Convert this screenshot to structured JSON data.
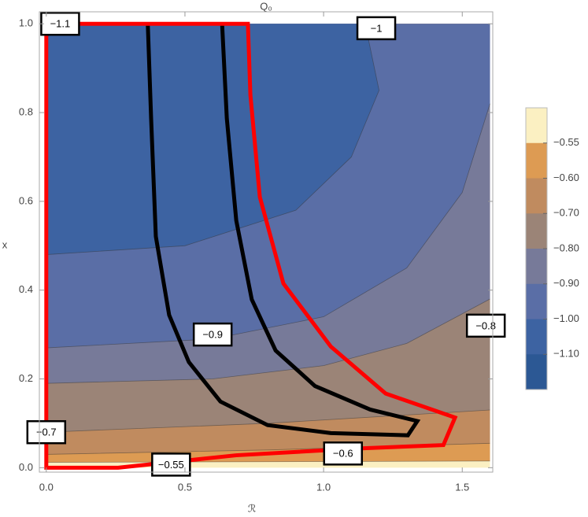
{
  "chart_data": {
    "type": "contour",
    "title": "Q₀",
    "x_label": "ℛ",
    "y_label": "x",
    "xlim": [
      -0.025,
      1.61
    ],
    "ylim": [
      -0.01,
      1.027
    ],
    "xticks": [
      {
        "value": 0,
        "label": "0.0"
      },
      0.5,
      {
        "value": 1,
        "label": "1.0"
      },
      1.5
    ],
    "yticks": [
      {
        "value": 0,
        "label": "0.0"
      },
      0.2,
      0.4,
      0.6,
      0.8,
      {
        "value": 1,
        "label": "1.0"
      }
    ],
    "domain": {
      "x": [
        0,
        1.6
      ],
      "y": [
        0,
        1
      ]
    },
    "colors": [
      "#fbf0c2",
      "#dd9b53",
      "#c08b5f",
      "#9b8477",
      "#777a99",
      "#5a6ea6",
      "#3d63a2",
      "#2c5894"
    ],
    "contours": [
      {
        "x": [
          0,
          1.6
        ],
        "y": [
          0.012,
          0.015
        ]
      },
      {
        "x": [
          0,
          0.8,
          1.6
        ],
        "y": [
          0.03,
          0.04,
          0.055
        ]
      },
      {
        "x": [
          0,
          0.8,
          1.6
        ],
        "y": [
          0.08,
          0.1,
          0.13
        ]
      },
      {
        "x": [
          0,
          0.6,
          1.0,
          1.3,
          1.6
        ],
        "y": [
          0.19,
          0.2,
          0.23,
          0.28,
          0.38
        ]
      },
      {
        "x": [
          0,
          0.6,
          1.0,
          1.3,
          1.5,
          1.6
        ],
        "y": [
          0.27,
          0.29,
          0.34,
          0.45,
          0.62,
          0.82
        ]
      },
      {
        "x": [
          0,
          0.5,
          0.9,
          1.1,
          1.2,
          1.15
        ],
        "y": [
          0.48,
          0.5,
          0.58,
          0.7,
          0.85,
          1.0
        ]
      },
      {
        "x": [
          0,
          0.03,
          0.1
        ],
        "y": [
          0.97,
          0.98,
          1.0
        ]
      }
    ],
    "contour_labels": [
      {
        "value": -1.1,
        "label": "−1.1",
        "x": 0.05,
        "y": 1.0
      },
      {
        "value": -1,
        "label": "−1",
        "x": 1.19,
        "y": 0.99
      },
      {
        "value": -0.9,
        "label": "−0.9",
        "x": 0.6,
        "y": 0.3
      },
      {
        "value": -0.8,
        "label": "−0.8",
        "x": 1.585,
        "y": 0.32
      },
      {
        "value": -0.7,
        "label": "−0.7",
        "x": 0.0,
        "y": 0.08
      },
      {
        "value": -0.6,
        "label": "−0.6",
        "x": 1.07,
        "y": 0.032
      },
      {
        "value": -0.55,
        "label": "−0.55",
        "x": 0.45,
        "y": 0.007
      }
    ],
    "curves": [
      {
        "color": "#000000",
        "x": [
          0.366,
          0.378,
          0.395,
          0.443,
          0.514,
          0.628,
          0.798,
          1.026,
          1.304,
          1.338,
          1.168,
          0.969,
          0.827,
          0.741,
          0.685,
          0.651,
          0.634
        ],
        "y": [
          1.0,
          0.787,
          0.521,
          0.344,
          0.238,
          0.149,
          0.096,
          0.078,
          0.073,
          0.105,
          0.131,
          0.184,
          0.264,
          0.379,
          0.557,
          0.787,
          1.0
        ]
      },
      {
        "color": "#ff0000",
        "x": [
          0,
          0.727,
          0.736,
          0.77,
          0.855,
          1.026,
          1.224,
          1.474,
          1.432,
          1.111,
          0.685,
          0.259,
          0,
          0
        ],
        "y": [
          1.0,
          1.0,
          0.84,
          0.61,
          0.415,
          0.273,
          0.167,
          0.113,
          0.051,
          0.043,
          0.028,
          0.0,
          0.0,
          1.0
        ]
      }
    ],
    "colorbar_ticks": [
      {
        "value": -0.55,
        "label": "−0.55"
      },
      {
        "value": -0.6,
        "label": "−0.60"
      },
      {
        "value": -0.7,
        "label": "−0.70"
      },
      {
        "value": -0.8,
        "label": "−0.80"
      },
      {
        "value": -0.9,
        "label": "−0.90"
      },
      {
        "value": -1.0,
        "label": "−1.00"
      },
      {
        "value": -1.1,
        "label": "−1.10"
      }
    ]
  }
}
